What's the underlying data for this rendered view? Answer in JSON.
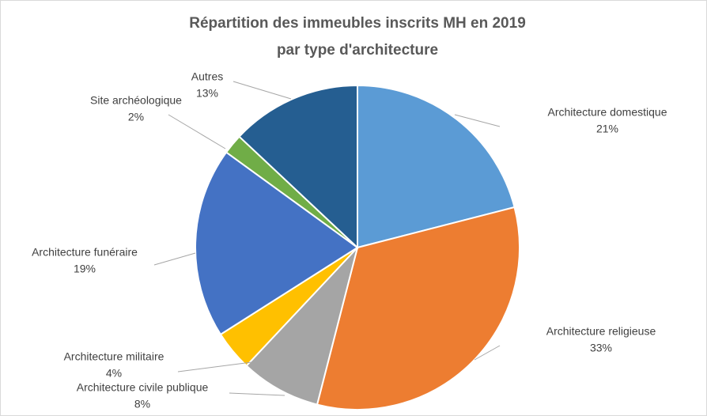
{
  "chart_data": {
    "type": "pie",
    "title": [
      "Répartition des immeubles inscrits MH en 2019",
      "par type d'architecture"
    ],
    "categories": [
      "Architecture domestique",
      "Architecture religieuse",
      "Architecture civile publique",
      "Architecture militaire",
      "Architecture funéraire",
      "Site archéologique",
      "Autres"
    ],
    "values": [
      21,
      33,
      8,
      4,
      19,
      2,
      13
    ],
    "value_labels": [
      "21%",
      "33%",
      "8%",
      "4%",
      "19%",
      "2%",
      "13%"
    ],
    "colors": [
      "#5b9bd5",
      "#ed7d31",
      "#a5a5a5",
      "#ffc000",
      "#4472c4",
      "#70ad47",
      "#255e91"
    ]
  }
}
